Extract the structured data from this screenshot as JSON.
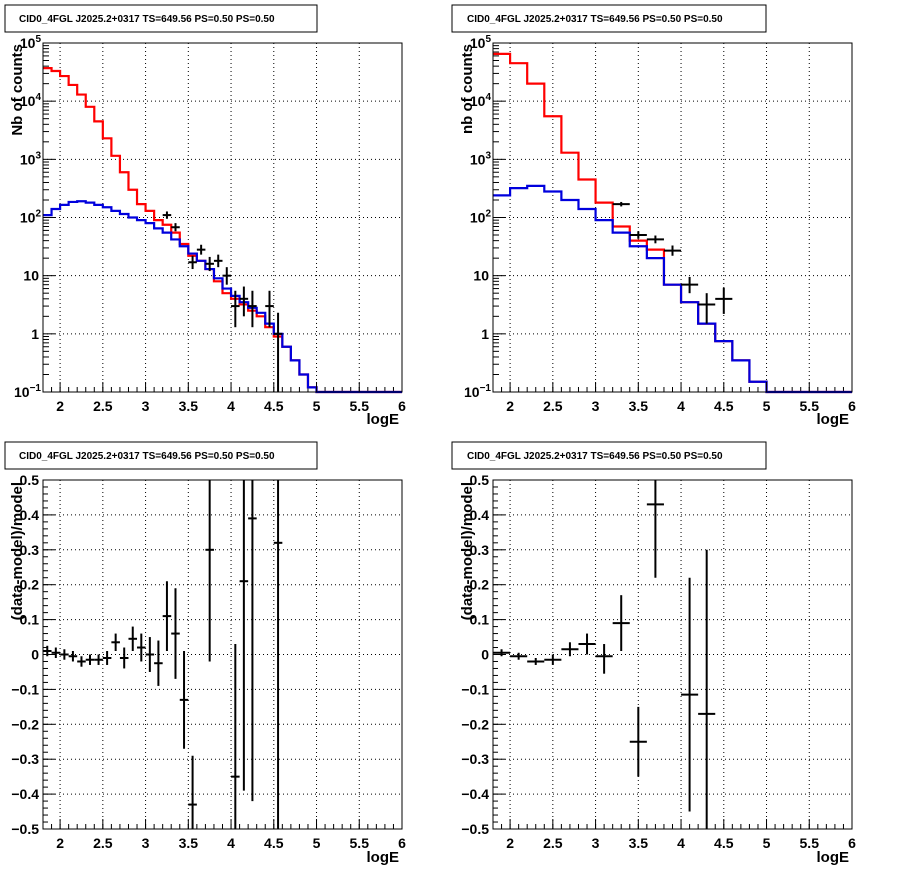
{
  "colors": {
    "data": "#000000",
    "total_model": "#ff0000",
    "source_model": "#0000dd",
    "grid": "#000000"
  },
  "chart_data": [
    {
      "id": "counts_fine",
      "type": "line",
      "title": "CID0_4FGL J2025.2+0317 TS=649.56 PS=0.50 PS=0.50",
      "xlabel": "logE",
      "ylabel": "Nb of counts",
      "xlim": [
        1.8,
        6.0
      ],
      "ylim": [
        0.1,
        100000
      ],
      "yscale": "log",
      "grid": true,
      "xticks": [
        "2",
        "2.5",
        "3",
        "3.5",
        "4",
        "4.5",
        "5",
        "5.5",
        "6"
      ],
      "yticks": [
        "10^-1",
        "1",
        "10",
        "10^2",
        "10^3",
        "10^4",
        "10^5"
      ],
      "bin_edges": [
        1.8,
        1.9,
        2.0,
        2.1,
        2.2,
        2.3,
        2.4,
        2.5,
        2.6,
        2.7,
        2.8,
        2.9,
        3.0,
        3.1,
        3.2,
        3.3,
        3.4,
        3.5,
        3.6,
        3.7,
        3.8,
        3.9,
        4.0,
        4.1,
        4.2,
        4.3,
        4.4,
        4.5,
        4.6,
        4.7,
        4.8,
        4.9,
        5.0,
        5.1,
        5.2,
        5.3,
        5.4,
        5.5,
        5.6,
        5.7,
        5.8,
        5.9,
        6.0
      ],
      "series": [
        {
          "name": "",
          "role": "total_model",
          "values": [
            37000,
            33000,
            27000,
            19000,
            13000,
            8000,
            4500,
            2300,
            1150,
            600,
            300,
            170,
            130,
            90,
            75,
            55,
            35,
            22,
            18,
            13,
            8,
            5,
            4,
            3.2,
            2.5,
            2.0,
            1.3,
            0.9,
            0.6,
            0.35,
            0.2,
            0.12,
            0.1,
            0.1,
            0.1,
            0.1,
            0.1,
            0.1,
            0.1,
            0.1,
            0.1,
            0.1
          ]
        },
        {
          "name": "",
          "role": "source_model",
          "values": [
            110,
            140,
            165,
            185,
            190,
            180,
            165,
            150,
            130,
            115,
            100,
            90,
            80,
            65,
            55,
            42,
            32,
            24,
            18,
            13,
            9,
            6,
            4.5,
            3.5,
            2.8,
            2.3,
            1.5,
            1.0,
            0.6,
            0.35,
            0.2,
            0.12,
            0.1,
            0.1,
            0.1,
            0.1,
            0.1,
            0.1,
            0.1,
            0.1,
            0.1,
            0.1
          ]
        }
      ],
      "points": [
        {
          "x": 3.25,
          "y": 110,
          "ylo": 95,
          "yhi": 127,
          "xerr": 0.05
        },
        {
          "x": 3.35,
          "y": 68,
          "ylo": 58,
          "yhi": 80,
          "xerr": 0.05
        },
        {
          "x": 3.55,
          "y": 17,
          "ylo": 13,
          "yhi": 22,
          "xerr": 0.05
        },
        {
          "x": 3.65,
          "y": 28,
          "ylo": 23,
          "yhi": 34,
          "xerr": 0.05
        },
        {
          "x": 3.75,
          "y": 16,
          "ylo": 12,
          "yhi": 21,
          "xerr": 0.05
        },
        {
          "x": 3.85,
          "y": 18,
          "ylo": 14,
          "yhi": 23,
          "xerr": 0.05
        },
        {
          "x": 3.95,
          "y": 10,
          "ylo": 7,
          "yhi": 14,
          "xerr": 0.05
        },
        {
          "x": 4.05,
          "y": 3,
          "ylo": 1.3,
          "yhi": 5.5,
          "xerr": 0.05
        },
        {
          "x": 4.15,
          "y": 4,
          "ylo": 2,
          "yhi": 6.5,
          "xerr": 0.05
        },
        {
          "x": 4.25,
          "y": 3,
          "ylo": 1.3,
          "yhi": 5.5,
          "xerr": 0.05
        },
        {
          "x": 4.45,
          "y": 3,
          "ylo": 1.3,
          "yhi": 5.5,
          "xerr": 0.05
        },
        {
          "x": 4.55,
          "y": 1,
          "ylo": 0.1,
          "yhi": 2.3,
          "xerr": 0.05
        }
      ]
    },
    {
      "id": "counts_coarse",
      "type": "line",
      "title": "CID0_4FGL J2025.2+0317 TS=649.56 PS=0.50 PS=0.50",
      "xlabel": "logE",
      "ylabel": "nb of counts",
      "xlim": [
        1.8,
        6.0
      ],
      "ylim": [
        0.1,
        100000
      ],
      "yscale": "log",
      "grid": true,
      "xticks": [
        "2",
        "2.5",
        "3",
        "3.5",
        "4",
        "4.5",
        "5",
        "5.5",
        "6"
      ],
      "yticks": [
        "10^-1",
        "1",
        "10",
        "10^2",
        "10^3",
        "10^4",
        "10^5"
      ],
      "bin_edges": [
        1.8,
        2.0,
        2.2,
        2.4,
        2.6,
        2.8,
        3.0,
        3.2,
        3.4,
        3.6,
        3.8,
        4.0,
        4.2,
        4.4,
        4.6,
        4.8,
        5.0,
        5.2,
        5.4,
        5.6,
        5.8,
        6.0
      ],
      "series": [
        {
          "name": "",
          "role": "total_model",
          "values": [
            65000,
            45000,
            20000,
            5500,
            1300,
            450,
            180,
            70,
            40,
            28,
            7,
            3.5,
            1.5,
            0.75,
            0.35,
            0.15,
            0.1,
            0.1,
            0.1,
            0.1,
            0.1
          ]
        },
        {
          "name": "",
          "role": "source_model",
          "values": [
            240,
            320,
            350,
            280,
            200,
            140,
            90,
            55,
            32,
            20,
            7,
            3.5,
            1.5,
            0.75,
            0.35,
            0.15,
            0.1,
            0.1,
            0.1,
            0.1,
            0.1
          ]
        }
      ],
      "points": [
        {
          "x": 3.3,
          "y": 170,
          "ylo": 155,
          "yhi": 185,
          "xerr": 0.1
        },
        {
          "x": 3.5,
          "y": 50,
          "ylo": 43,
          "yhi": 58,
          "xerr": 0.1
        },
        {
          "x": 3.7,
          "y": 42,
          "ylo": 36,
          "yhi": 49,
          "xerr": 0.1
        },
        {
          "x": 3.9,
          "y": 27,
          "ylo": 22,
          "yhi": 33,
          "xerr": 0.1
        },
        {
          "x": 4.1,
          "y": 7,
          "ylo": 5,
          "yhi": 9.5,
          "xerr": 0.1
        },
        {
          "x": 4.3,
          "y": 3.2,
          "ylo": 1.5,
          "yhi": 5,
          "xerr": 0.1
        },
        {
          "x": 4.5,
          "y": 4,
          "ylo": 2.2,
          "yhi": 6.2,
          "xerr": 0.1
        }
      ]
    },
    {
      "id": "residuals_fine",
      "type": "scatter",
      "title": "CID0_4FGL J2025.2+0317 TS=649.56 PS=0.50 PS=0.50",
      "xlabel": "logE",
      "ylabel": "(data-model)/model",
      "xlim": [
        1.8,
        6.0
      ],
      "ylim": [
        -0.5,
        0.5
      ],
      "grid": true,
      "xticks": [
        "2",
        "2.5",
        "3",
        "3.5",
        "4",
        "4.5",
        "5",
        "5.5",
        "6"
      ],
      "yticks": [
        "-0.5",
        "-0.4",
        "-0.3",
        "-0.2",
        "-0.1",
        "0",
        "0.1",
        "0.2",
        "0.3",
        "0.4",
        "0.5"
      ],
      "points": [
        {
          "x": 1.85,
          "y": 0.01,
          "ylo": -0.005,
          "yhi": 0.025,
          "xerr": 0.05
        },
        {
          "x": 1.95,
          "y": 0.005,
          "ylo": -0.01,
          "yhi": 0.02,
          "xerr": 0.05
        },
        {
          "x": 2.05,
          "y": 0.0,
          "ylo": -0.015,
          "yhi": 0.015,
          "xerr": 0.05
        },
        {
          "x": 2.15,
          "y": -0.005,
          "ylo": -0.02,
          "yhi": 0.01,
          "xerr": 0.05
        },
        {
          "x": 2.25,
          "y": -0.02,
          "ylo": -0.035,
          "yhi": -0.005,
          "xerr": 0.05
        },
        {
          "x": 2.35,
          "y": -0.015,
          "ylo": -0.03,
          "yhi": 0.0,
          "xerr": 0.05
        },
        {
          "x": 2.45,
          "y": -0.015,
          "ylo": -0.03,
          "yhi": 0.0,
          "xerr": 0.05
        },
        {
          "x": 2.55,
          "y": -0.01,
          "ylo": -0.03,
          "yhi": 0.01,
          "xerr": 0.05
        },
        {
          "x": 2.65,
          "y": 0.035,
          "ylo": 0.01,
          "yhi": 0.06,
          "xerr": 0.05
        },
        {
          "x": 2.75,
          "y": -0.01,
          "ylo": -0.04,
          "yhi": 0.02,
          "xerr": 0.05
        },
        {
          "x": 2.85,
          "y": 0.045,
          "ylo": 0.01,
          "yhi": 0.08,
          "xerr": 0.05
        },
        {
          "x": 2.95,
          "y": 0.02,
          "ylo": -0.02,
          "yhi": 0.06,
          "xerr": 0.05
        },
        {
          "x": 3.05,
          "y": 0.0,
          "ylo": -0.05,
          "yhi": 0.05,
          "xerr": 0.05
        },
        {
          "x": 3.15,
          "y": -0.025,
          "ylo": -0.09,
          "yhi": 0.04,
          "xerr": 0.05
        },
        {
          "x": 3.25,
          "y": 0.11,
          "ylo": 0.01,
          "yhi": 0.21,
          "xerr": 0.05
        },
        {
          "x": 3.35,
          "y": 0.06,
          "ylo": -0.07,
          "yhi": 0.19,
          "xerr": 0.05
        },
        {
          "x": 3.45,
          "y": -0.13,
          "ylo": -0.27,
          "yhi": 0.01,
          "xerr": 0.05
        },
        {
          "x": 3.55,
          "y": -0.43,
          "ylo": -0.5,
          "yhi": -0.29,
          "xerr": 0.05
        },
        {
          "x": 3.75,
          "y": 0.3,
          "ylo": -0.02,
          "yhi": 0.5,
          "xerr": 0.05
        },
        {
          "x": 4.05,
          "y": -0.35,
          "ylo": -0.5,
          "yhi": 0.03,
          "xerr": 0.05
        },
        {
          "x": 4.15,
          "y": 0.21,
          "ylo": -0.39,
          "yhi": 0.5,
          "xerr": 0.05
        },
        {
          "x": 4.25,
          "y": 0.39,
          "ylo": -0.42,
          "yhi": 0.5,
          "xerr": 0.05
        },
        {
          "x": 4.55,
          "y": 0.32,
          "ylo": -0.5,
          "yhi": 0.5,
          "xerr": 0.05
        }
      ]
    },
    {
      "id": "residuals_coarse",
      "type": "scatter",
      "title": "CID0_4FGL J2025.2+0317 TS=649.56 PS=0.50 PS=0.50",
      "xlabel": "logE",
      "ylabel": "(data-model)/model",
      "xlim": [
        1.8,
        6.0
      ],
      "ylim": [
        -0.5,
        0.5
      ],
      "grid": true,
      "xticks": [
        "2",
        "2.5",
        "3",
        "3.5",
        "4",
        "4.5",
        "5",
        "5.5",
        "6"
      ],
      "yticks": [
        "-0.5",
        "-0.4",
        "-0.3",
        "-0.2",
        "-0.1",
        "0",
        "0.1",
        "0.2",
        "0.3",
        "0.4",
        "0.5"
      ],
      "points": [
        {
          "x": 1.9,
          "y": 0.005,
          "ylo": -0.005,
          "yhi": 0.015,
          "xerr": 0.1
        },
        {
          "x": 2.1,
          "y": -0.005,
          "ylo": -0.015,
          "yhi": 0.005,
          "xerr": 0.1
        },
        {
          "x": 2.3,
          "y": -0.02,
          "ylo": -0.03,
          "yhi": -0.01,
          "xerr": 0.1
        },
        {
          "x": 2.5,
          "y": -0.015,
          "ylo": -0.03,
          "yhi": 0.0,
          "xerr": 0.1
        },
        {
          "x": 2.7,
          "y": 0.015,
          "ylo": -0.005,
          "yhi": 0.035,
          "xerr": 0.1
        },
        {
          "x": 2.9,
          "y": 0.03,
          "ylo": 0.0,
          "yhi": 0.06,
          "xerr": 0.1
        },
        {
          "x": 3.1,
          "y": -0.005,
          "ylo": -0.055,
          "yhi": 0.03,
          "xerr": 0.1
        },
        {
          "x": 3.3,
          "y": 0.09,
          "ylo": 0.01,
          "yhi": 0.17,
          "xerr": 0.1
        },
        {
          "x": 3.5,
          "y": -0.25,
          "ylo": -0.35,
          "yhi": -0.15,
          "xerr": 0.1
        },
        {
          "x": 3.7,
          "y": 0.43,
          "ylo": 0.22,
          "yhi": 0.5,
          "xerr": 0.1
        },
        {
          "x": 4.1,
          "y": -0.115,
          "ylo": -0.45,
          "yhi": 0.22,
          "xerr": 0.1
        },
        {
          "x": 4.3,
          "y": -0.17,
          "ylo": -0.5,
          "yhi": 0.3,
          "xerr": 0.1
        }
      ]
    }
  ]
}
